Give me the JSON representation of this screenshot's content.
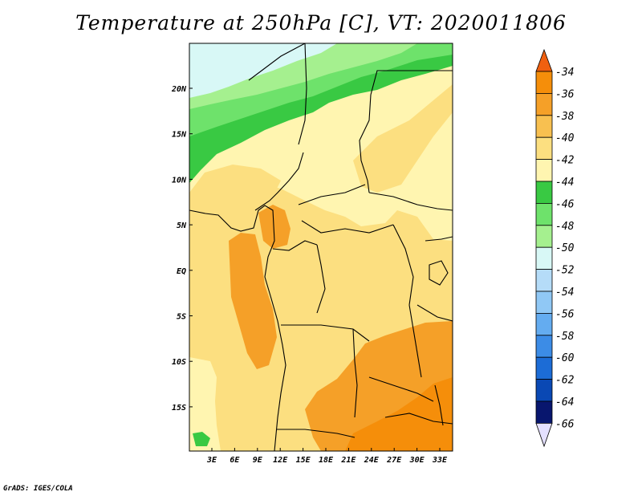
{
  "title": "Temperature at 250hPa [C], VT: 2020011806",
  "credit": "GrADS: IGES/COLA",
  "map": {
    "lat_ticks": [
      "20N",
      "15N",
      "10N",
      "5N",
      "EQ",
      "5S",
      "10S",
      "15S"
    ],
    "lon_ticks": [
      "3E",
      "6E",
      "9E",
      "12E",
      "15E",
      "18E",
      "21E",
      "24E",
      "27E",
      "30E",
      "33E"
    ]
  },
  "colorbar": {
    "labels": [
      "-34",
      "-36",
      "-38",
      "-40",
      "-42",
      "-44",
      "-46",
      "-48",
      "-50",
      "-52",
      "-54",
      "-56",
      "-58",
      "-60",
      "-62",
      "-64",
      "-66"
    ],
    "colors": [
      "#f06010",
      "#f58e0a",
      "#f5a028",
      "#f8c050",
      "#fcdf80",
      "#fff5b0",
      "#39c943",
      "#6ee26b",
      "#a5f08f",
      "#d8f8f6",
      "#b5dcf8",
      "#90c8f5",
      "#64acf0",
      "#3c8ce6",
      "#1c6cd6",
      "#0a48b4",
      "#08166e",
      "#e4e0ff"
    ]
  }
}
